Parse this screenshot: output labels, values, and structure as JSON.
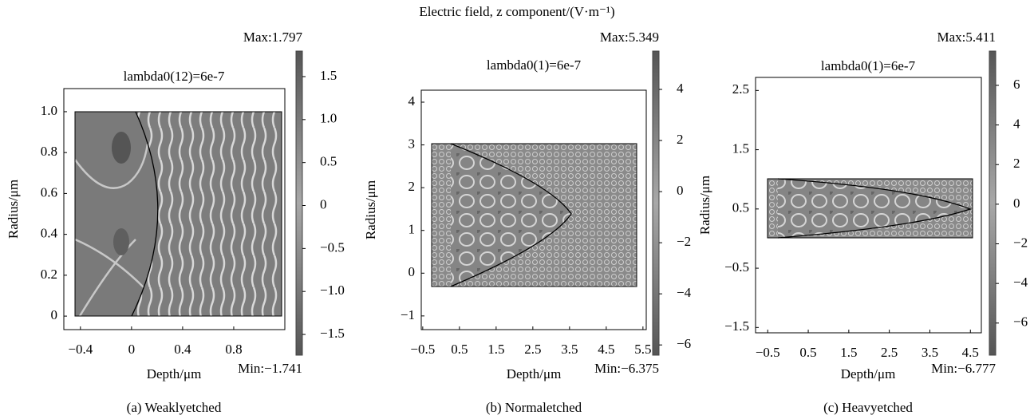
{
  "title": "Electric field, z component/(V·m⁻¹)",
  "chart_data": [
    {
      "type": "field-map",
      "title": "lambda0(12)=6e-7",
      "xlabel": "Depth/μm",
      "ylabel": "Radius/μm",
      "caption": "(a) Weaklyetched",
      "xlim": [
        -0.53,
        1.2
      ],
      "ylim": [
        -0.066,
        1.113
      ],
      "xticks": [
        {
          "value": -0.4,
          "label": "−0.4"
        },
        0,
        0.4,
        0.8
      ],
      "yticks": [
        0,
        0.2,
        0.4,
        0.6,
        0.8,
        {
          "value": 1.0,
          "label": "1.0"
        }
      ],
      "colorbar": {
        "lim": [
          -1.741,
          1.797
        ],
        "max_label": "Max:1.797",
        "min_label": "Min:−1.741",
        "ticks": [
          1.5,
          {
            "value": 1.0,
            "label": "1.0"
          },
          0.5,
          0,
          {
            "value": -0.5,
            "label": "−0.5"
          },
          {
            "value": -1.0,
            "label": "−1.0"
          },
          {
            "value": -1.5,
            "label": "−1.5"
          }
        ]
      }
    },
    {
      "type": "field-map",
      "title": "lambda0(1)=6e-7",
      "xlabel": "Depth/μm",
      "ylabel": "Radius/μm",
      "caption": "(b) Normaletched",
      "xlim": [
        -0.54,
        5.59
      ],
      "ylim": [
        -1.32,
        4.28
      ],
      "xticks": [
        {
          "value": -0.5,
          "label": "−0.5"
        },
        0.5,
        1.5,
        2.5,
        3.5,
        4.5,
        5.5
      ],
      "yticks": [
        {
          "value": -1,
          "label": "−1"
        },
        0,
        1,
        2,
        3,
        4
      ],
      "colorbar": {
        "lim": [
          -6.4,
          5.5
        ],
        "max_label": "Max:5.349",
        "min_label": "Min:−6.375",
        "ticks": [
          4,
          2,
          0,
          {
            "value": -2,
            "label": "−2"
          },
          {
            "value": -4,
            "label": "−4"
          },
          {
            "value": -6,
            "label": "−6"
          }
        ]
      }
    },
    {
      "type": "field-map",
      "title": "lambda0(1)=6e-7",
      "xlabel": "Depth/μm",
      "ylabel": "Radius/μm",
      "caption": "(c) Heavyetched",
      "xlim": [
        -0.8,
        4.77
      ],
      "ylim": [
        -1.59,
        2.72
      ],
      "xticks": [
        {
          "value": -0.5,
          "label": "−0.5"
        },
        0.5,
        1.5,
        2.5,
        3.5,
        4.5
      ],
      "yticks": [
        {
          "value": -1.5,
          "label": "−1.5"
        },
        {
          "value": -0.5,
          "label": "−0.5"
        },
        0.5,
        1.5,
        2.5
      ],
      "colorbar": {
        "lim": [
          -7.62,
          7.73
        ],
        "max_label": "Max:5.411",
        "min_label": "Min:−6.777",
        "ticks": [
          6,
          4,
          2,
          0,
          {
            "value": -2,
            "label": "−2"
          },
          {
            "value": -4,
            "label": "−4"
          },
          {
            "value": -6,
            "label": "−6"
          }
        ]
      }
    }
  ]
}
